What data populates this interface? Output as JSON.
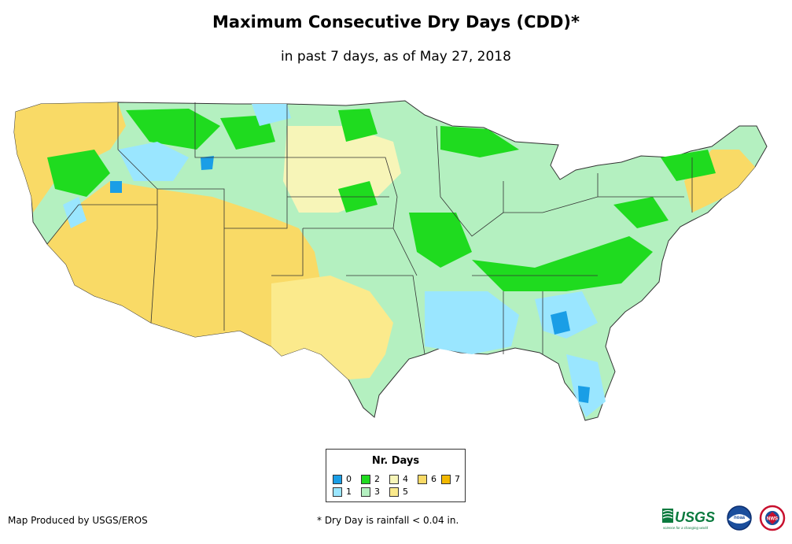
{
  "title": "Maximum Consecutive Dry Days (CDD)*",
  "subtitle": "in past 7 days, as of May 27, 2018",
  "legend": {
    "title": "Nr. Days",
    "items": [
      {
        "label": "0",
        "color": "#1a9ee6"
      },
      {
        "label": "1",
        "color": "#9ae6ff"
      },
      {
        "label": "2",
        "color": "#1fdb1f"
      },
      {
        "label": "3",
        "color": "#b4f0c0"
      },
      {
        "label": "4",
        "color": "#f7f5b8"
      },
      {
        "label": "5",
        "color": "#fbea8c"
      },
      {
        "label": "6",
        "color": "#f9da66"
      },
      {
        "label": "7",
        "color": "#f2b800"
      }
    ]
  },
  "footer": {
    "credit": "Map Produced by USGS/EROS",
    "note": "* Dry Day is rainfall < 0.04 in."
  },
  "logos": {
    "usgs": "USGS",
    "usgs_tagline": "science for a changing world",
    "noaa": "noaa",
    "nws": "NWS"
  }
}
